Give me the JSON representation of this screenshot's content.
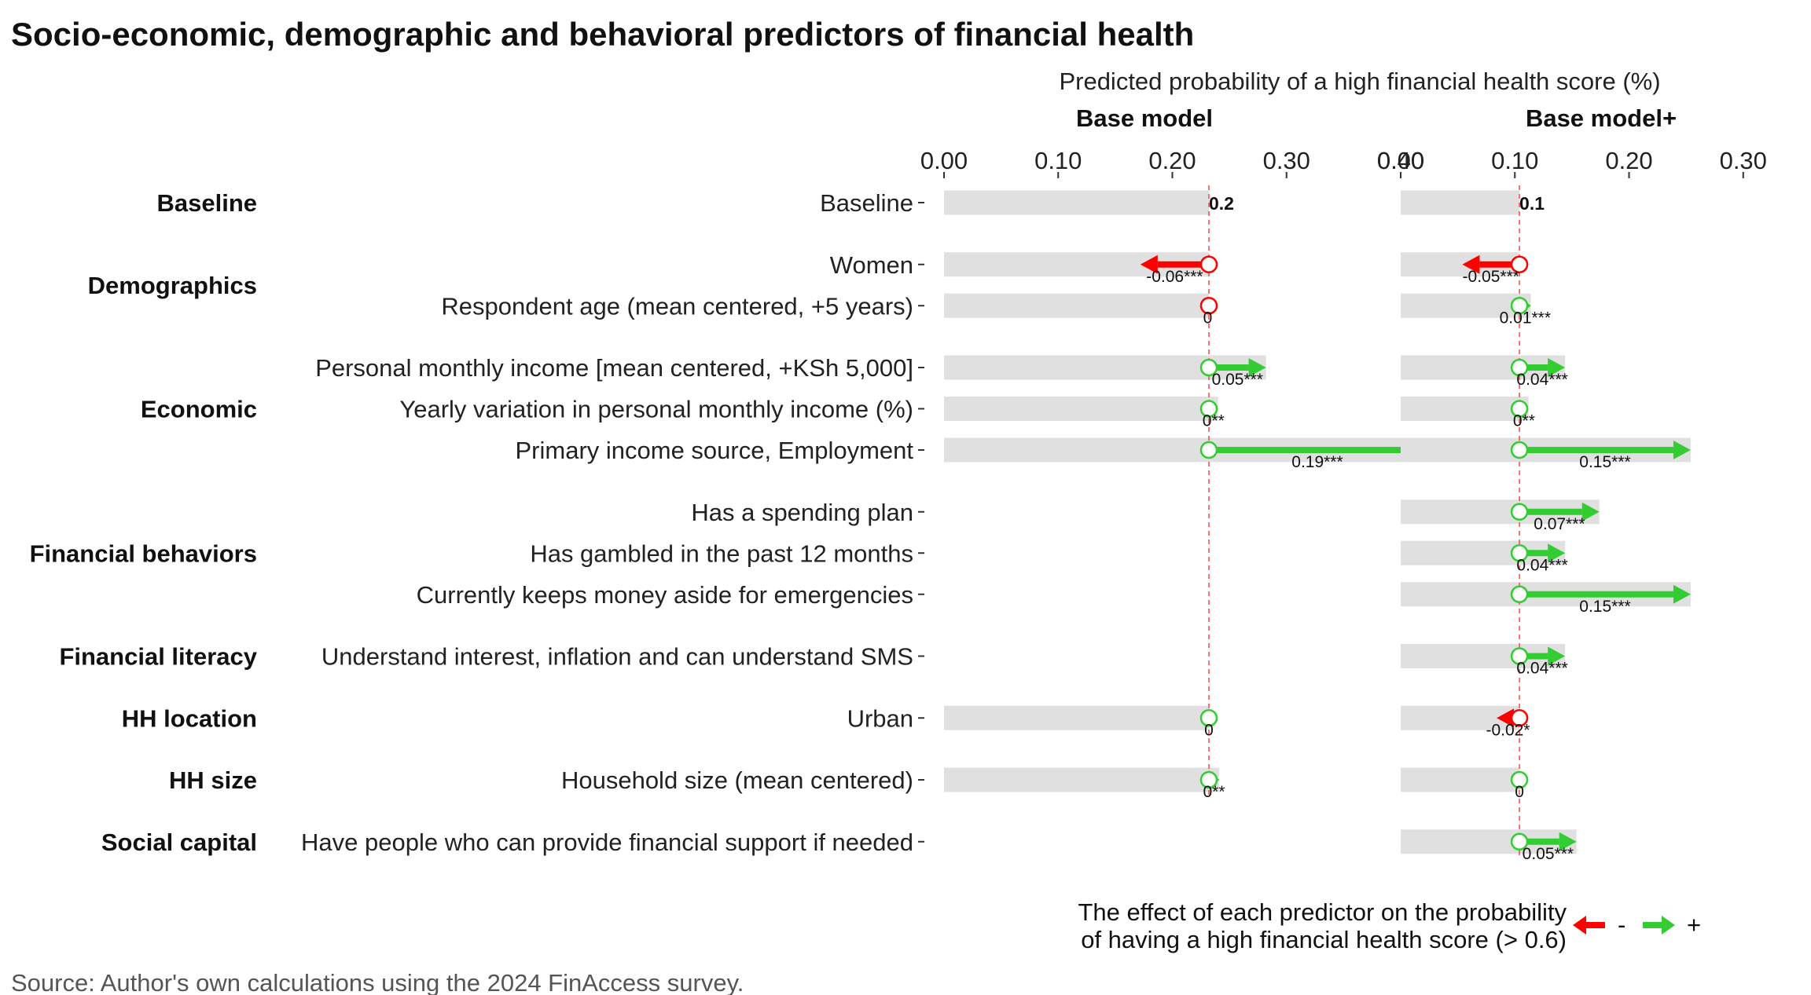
{
  "title": "Socio-economic, demographic and behavioral predictors of financial health",
  "axis_title": "Predicted probability of a high financial health score (%)",
  "source": "Source: Author's own calculations using the 2024 FinAccess survey.",
  "legend": {
    "text_line1": "The effect of each predictor on the probability",
    "text_line2": "of having a high financial health score (> 0.6)",
    "negative_label": "-",
    "positive_label": "+"
  },
  "colors": {
    "negative": "#ff0000",
    "positive": "#33cc33",
    "bar": "#e0e0e0",
    "baseline_line": "#ff4444"
  },
  "chart_data": {
    "type": "bar",
    "xlim": [
      0,
      0.4
    ],
    "ticks": [
      {
        "value": 0,
        "label": "0.00"
      },
      {
        "value": 0.1,
        "label": "0.10"
      },
      {
        "value": 0.2,
        "label": "0.20"
      },
      {
        "value": 0.3,
        "label": "0.30"
      },
      {
        "value": 0.4,
        "label": "0.40"
      }
    ],
    "groups": [
      {
        "label": "Baseline",
        "rows": [
          0
        ]
      },
      {
        "label": "Demographics",
        "rows": [
          1,
          2
        ]
      },
      {
        "label": "Economic",
        "rows": [
          3,
          4,
          5
        ]
      },
      {
        "label": "Financial behaviors",
        "rows": [
          6,
          7,
          8
        ]
      },
      {
        "label": "Financial literacy",
        "rows": [
          9
        ]
      },
      {
        "label": "HH location",
        "rows": [
          10
        ]
      },
      {
        "label": "HH size",
        "rows": [
          11
        ]
      },
      {
        "label": "Social capital",
        "rows": [
          12
        ]
      }
    ],
    "rows": [
      {
        "label": "Baseline",
        "slot": 0
      },
      {
        "label": "Women",
        "slot": 1.5
      },
      {
        "label": "Respondent age (mean centered, +5 years)",
        "slot": 2.5
      },
      {
        "label": "Personal monthly income [mean centered, +KSh 5,000]",
        "slot": 4
      },
      {
        "label": "Yearly variation in personal monthly income (%)",
        "slot": 5
      },
      {
        "label": "Primary income source, Employment",
        "slot": 6
      },
      {
        "label": "Has a spending plan",
        "slot": 7.5
      },
      {
        "label": "Has gambled in the past 12 months",
        "slot": 8.5
      },
      {
        "label": "Currently keeps money aside for emergencies",
        "slot": 9.5
      },
      {
        "label": "Understand interest, inflation and can understand SMS",
        "slot": 11
      },
      {
        "label": "Urban",
        "slot": 12.5
      },
      {
        "label": "Household size (mean centered)",
        "slot": 14
      },
      {
        "label": "Have people who can provide financial support if needed",
        "slot": 15.5
      }
    ],
    "panels": [
      {
        "name": "Base model",
        "baseline": 0.232,
        "baseline_label": "0.2",
        "effects": [
          null,
          {
            "value": -0.06,
            "label": "-0.06***"
          },
          {
            "value": -0.002,
            "label": "0"
          },
          {
            "value": 0.05,
            "label": "0.05***"
          },
          {
            "value": 0.008,
            "label": "0**"
          },
          {
            "value": 0.19,
            "label": "0.19***"
          },
          null,
          null,
          null,
          null,
          {
            "value": 0.0,
            "label": "0"
          },
          {
            "value": 0.009,
            "label": "0**"
          },
          null
        ]
      },
      {
        "name": "Base model+",
        "baseline": 0.104,
        "baseline_label": "0.1",
        "effects": [
          null,
          {
            "value": -0.05,
            "label": "-0.05***"
          },
          {
            "value": 0.01,
            "label": "0.01***"
          },
          {
            "value": 0.04,
            "label": "0.04***"
          },
          {
            "value": 0.008,
            "label": "0**"
          },
          {
            "value": 0.15,
            "label": "0.15***"
          },
          {
            "value": 0.07,
            "label": "0.07***"
          },
          {
            "value": 0.04,
            "label": "0.04***"
          },
          {
            "value": 0.15,
            "label": "0.15***"
          },
          {
            "value": 0.04,
            "label": "0.04***"
          },
          {
            "value": -0.02,
            "label": "-0.02*"
          },
          {
            "value": 0.0,
            "label": "0"
          },
          {
            "value": 0.05,
            "label": "0.05***"
          }
        ]
      }
    ]
  }
}
